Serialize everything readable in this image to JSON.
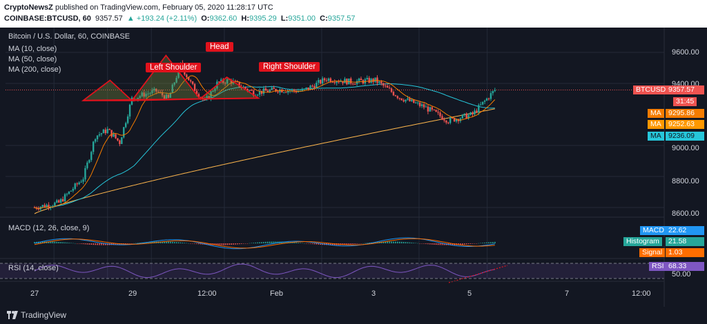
{
  "header": {
    "publisher": "CryptoNewsZ",
    "published_text": " published on TradingView.com, February 05, 2020 11:28:17 UTC",
    "symbol": "COINBASE:BTCUSD, 60",
    "last": "9357.57",
    "change": "▲ +193.24 (+2.11%)",
    "o_label": "O:",
    "o": "9362.60",
    "h_label": "H:",
    "h": "9395.29",
    "l_label": "L:",
    "l": "9351.00",
    "c_label": "C:",
    "c": "9357.57"
  },
  "legend": {
    "title": "Bitcoin / U.S. Dollar, 60, COINBASE",
    "ma10": "MA (10, close)",
    "ma50": "MA (50, close)",
    "ma200": "MA (200, close)"
  },
  "price_axis": {
    "ticks": [
      "9600.00",
      "9400.00",
      "9000.00",
      "8800.00",
      "8600.00"
    ],
    "tick_values": [
      9600,
      9400,
      9000,
      8800,
      8600
    ]
  },
  "price_badges": {
    "btcusd_label": "BTCUSD",
    "btcusd_value": "9357.57",
    "countdown": "31:45",
    "ma_label": "MA",
    "ma10_value": "9295.86",
    "ma50_value": "9252.63",
    "ma200_value": "9236.09"
  },
  "pattern_labels": {
    "left": "Left Shoulder",
    "head": "Head",
    "right": "Right Shoulder"
  },
  "macd": {
    "title": "MACD (12, 26, close, 9)",
    "macd_label": "MACD",
    "macd_value": "22.62",
    "hist_label": "Histogram",
    "hist_value": "21.58",
    "signal_label": "Signal",
    "signal_value": "1.03"
  },
  "rsi": {
    "title": "RSI (14, close)",
    "rsi_label": "RSI",
    "rsi_value": "68.33",
    "tick": "50.00"
  },
  "time_axis": [
    "27",
    "29",
    "12:00",
    "Feb",
    "3",
    "5",
    "7",
    "12:00"
  ],
  "footer": {
    "brand": "TradingView"
  },
  "colors": {
    "background": "#131722",
    "up": "#26a69a",
    "down": "#ef5350",
    "ma10": "#f57c00",
    "ma50": "#26c6da",
    "ma200": "#ffb74d",
    "pattern": "#e0121c",
    "btc_badge": "#ef5350",
    "rsi": "#7e57c2"
  },
  "chart_data": {
    "type": "candlestick",
    "title": "Bitcoin / U.S. Dollar, 60, COINBASE",
    "ylim": [
      8560,
      9760
    ],
    "last_price": 9357.57,
    "close_path": [
      [
        "Jan 27 00:00",
        8600
      ],
      [
        "Jan 27 12:00",
        8630
      ],
      [
        "Jan 28 00:00",
        8790
      ],
      [
        "Jan 28 06:00",
        9060
      ],
      [
        "Jan 28 12:00",
        9100
      ],
      [
        "Jan 28 18:00",
        9020
      ],
      [
        "Jan 29 00:00",
        9300
      ],
      [
        "Jan 29 06:00",
        9330
      ],
      [
        "Jan 29 12:00",
        9350
      ],
      [
        "Jan 29 18:00",
        9300
      ],
      [
        "Jan 30 00:00",
        9520
      ],
      [
        "Jan 30 06:00",
        9380
      ],
      [
        "Jan 30 12:00",
        9280
      ],
      [
        "Jan 30 18:00",
        9400
      ],
      [
        "Jan 31 00:00",
        9420
      ],
      [
        "Jan 31 12:00",
        9340
      ],
      [
        "Feb 1 00:00",
        9360
      ],
      [
        "Feb 1 12:00",
        9350
      ],
      [
        "Feb 2 00:00",
        9430
      ],
      [
        "Feb 2 12:00",
        9410
      ],
      [
        "Feb 3 00:00",
        9420
      ],
      [
        "Feb 3 12:00",
        9310
      ],
      [
        "Feb 4 00:00",
        9250
      ],
      [
        "Feb 4 12:00",
        9160
      ],
      [
        "Feb 5 00:00",
        9200
      ],
      [
        "Feb 5 11:00",
        9357.57
      ]
    ],
    "series": [
      {
        "name": "MA (10, close)",
        "last": 9295.86
      },
      {
        "name": "MA (50, close)",
        "last": 9252.63
      },
      {
        "name": "MA (200, close)",
        "last": 9236.09
      }
    ],
    "annotations": [
      "Left Shoulder",
      "Head",
      "Right Shoulder"
    ]
  }
}
